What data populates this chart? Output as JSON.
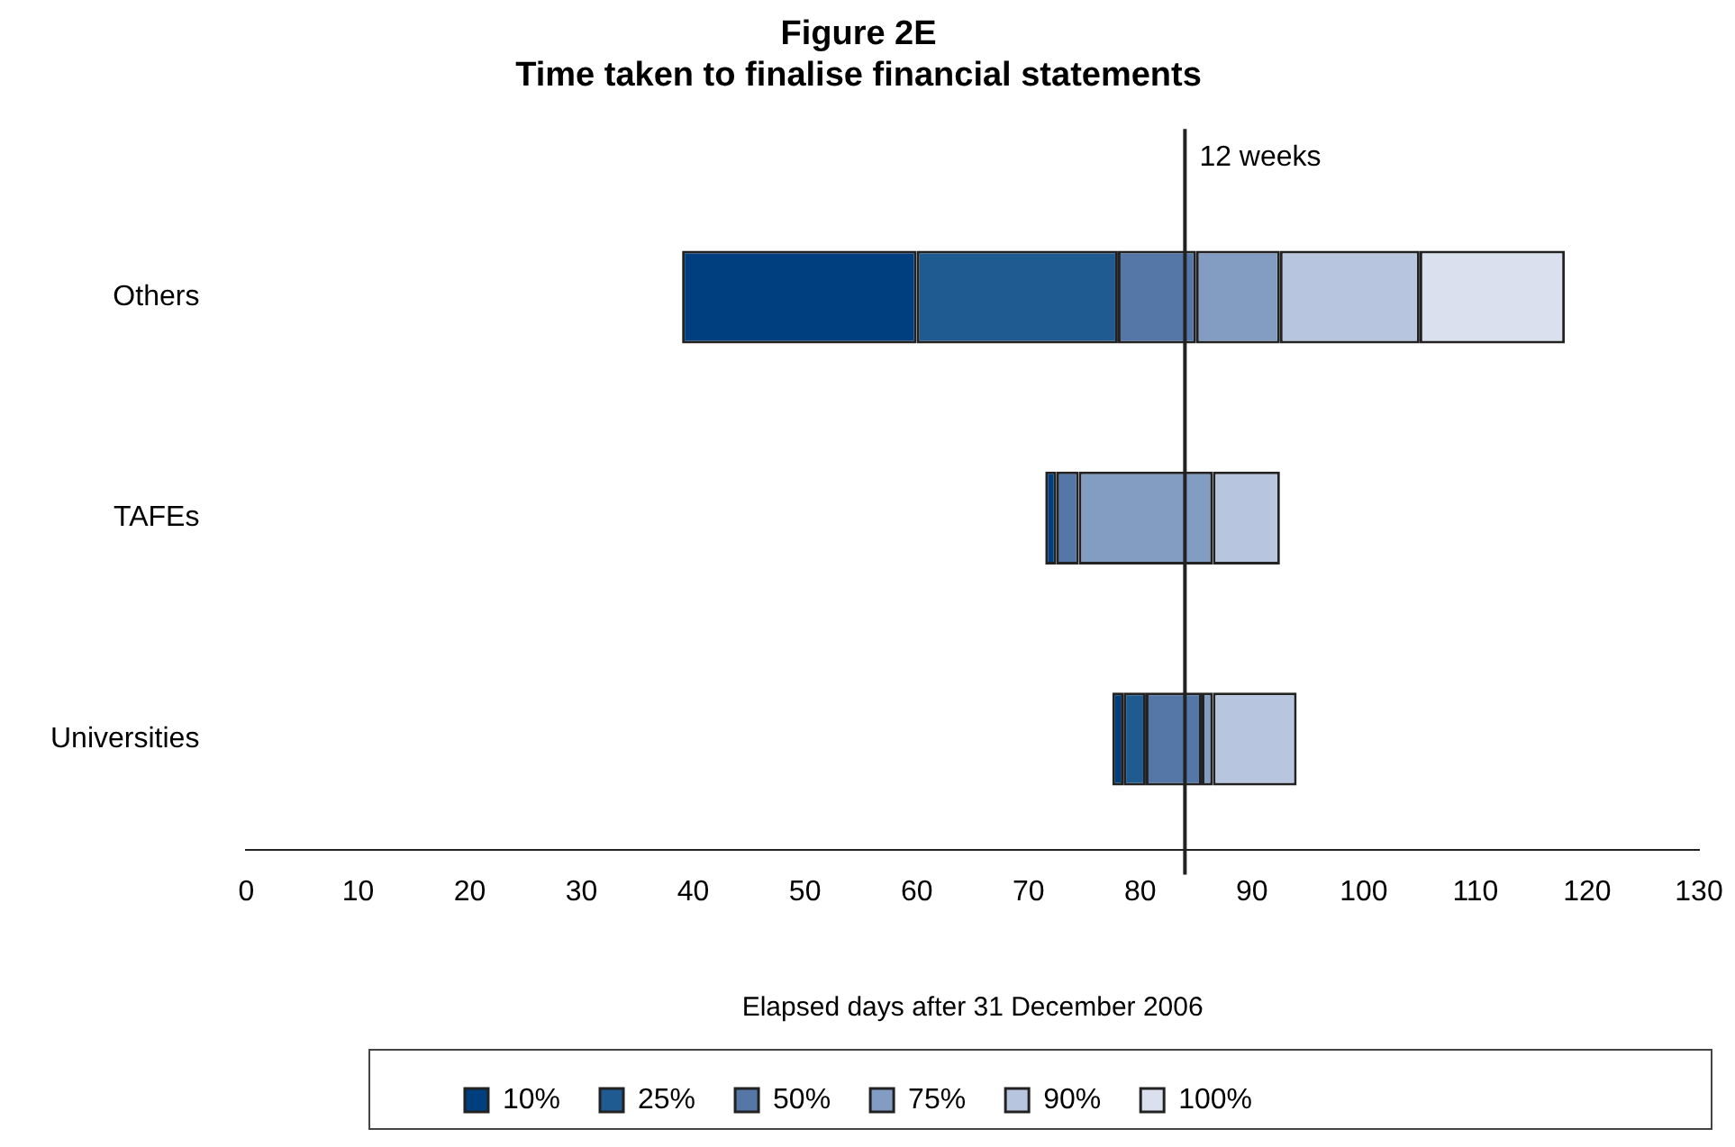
{
  "chart_data": {
    "type": "bar",
    "orientation": "horizontal",
    "title": "Figure 2E\nTime taken to finalise financial statements",
    "xlabel": "Elapsed days after 31 December 2006",
    "categories": [
      "Others",
      "TAFEs",
      "Universities"
    ],
    "series": [
      {
        "name": "10%",
        "color": "#003f7f",
        "base": [
          39,
          71.5,
          77.5
        ],
        "values": [
          21,
          1,
          1
        ]
      },
      {
        "name": "25%",
        "color": "#1f5a90",
        "base": [
          60,
          null,
          78.5
        ],
        "values": [
          18,
          null,
          2
        ]
      },
      {
        "name": "50%",
        "color": "#5577a8",
        "base": [
          78,
          72.5,
          80.5
        ],
        "values": [
          7,
          2,
          5
        ]
      },
      {
        "name": "75%",
        "color": "#839dc2",
        "base": [
          85,
          74.5,
          85.5
        ],
        "values": [
          7.5,
          12,
          1
        ]
      },
      {
        "name": "90%",
        "color": "#b8c5de",
        "base": [
          92.5,
          86.5,
          86.5
        ],
        "values": [
          12.5,
          6,
          7.5
        ]
      },
      {
        "name": "100%",
        "color": "#dbe0ee",
        "base": [
          105,
          null,
          null
        ],
        "values": [
          13,
          null,
          null
        ]
      }
    ],
    "xlim": [
      0,
      130
    ],
    "xticks": [
      0,
      10,
      20,
      30,
      40,
      50,
      60,
      70,
      80,
      90,
      100,
      110,
      120,
      130
    ],
    "ref_lines": [
      {
        "axis": "x",
        "value": 84,
        "label": "12 weeks",
        "color": "#222222"
      }
    ],
    "grid": false,
    "legend": "bottom"
  }
}
